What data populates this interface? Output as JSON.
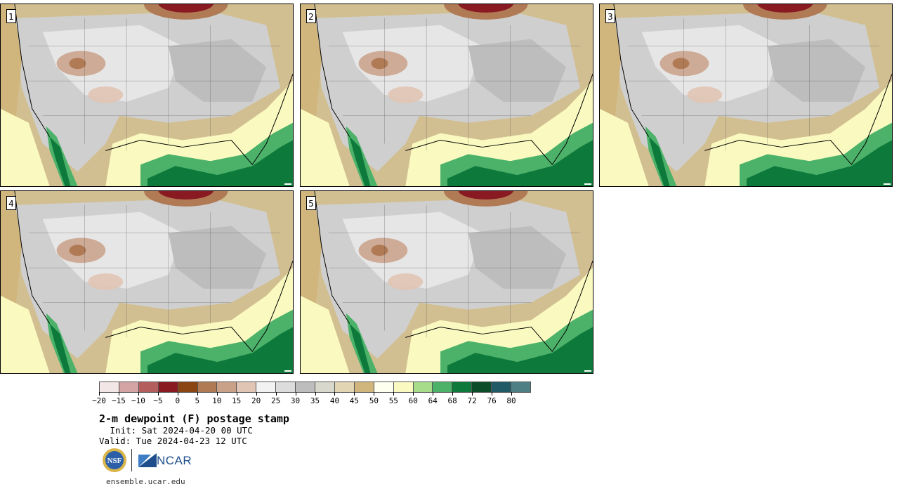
{
  "title": "2-m dewpoint (F) postage stamp",
  "init": " Init: Sat 2024-04-20 00 UTC",
  "valid": "Valid: Tue 2024-04-23 12 UTC",
  "footer_url": "ensemble.ucar.edu",
  "logos": {
    "nsf": "NSF",
    "ncar": "NCAR"
  },
  "panels": [
    {
      "label": "1"
    },
    {
      "label": "2"
    },
    {
      "label": "3"
    },
    {
      "label": "4"
    },
    {
      "label": "5"
    }
  ],
  "colorbar": {
    "colors": [
      "#f3e6e6",
      "#d4a3a3",
      "#b45e5e",
      "#8a1a22",
      "#8b4513",
      "#b07a55",
      "#c9a088",
      "#e0c4b4",
      "#f2f2f2",
      "#dcdcdc",
      "#bdbdbd",
      "#d8d8cc",
      "#e2d5b3",
      "#d0b57c",
      "#fffff0",
      "#fafac0",
      "#a6dc8a",
      "#4cb26a",
      "#0d7a3c",
      "#0a4d28",
      "#1f5a66",
      "#4d7f85"
    ],
    "tick_labels": [
      "−20",
      "−15",
      "−10",
      "−5",
      "0",
      "5",
      "10",
      "15",
      "20",
      "25",
      "30",
      "35",
      "40",
      "45",
      "50",
      "55",
      "60",
      "64",
      "68",
      "72",
      "76",
      "80"
    ]
  }
}
